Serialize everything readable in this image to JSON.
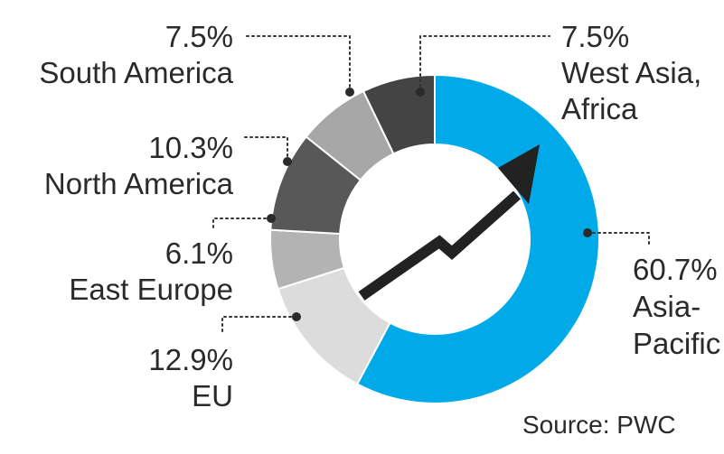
{
  "chart_data": {
    "type": "pie",
    "variant": "donut",
    "categories": [
      "Asia-Pacific",
      "EU",
      "East Europe",
      "North America",
      "South America",
      "West Asia, Africa"
    ],
    "values": [
      60.7,
      12.9,
      6.1,
      10.3,
      7.5,
      7.5
    ],
    "value_labels": [
      "60.7%",
      "12.9%",
      "6.1%",
      "10.3%",
      "7.5%",
      "7.5%"
    ],
    "name_lines": [
      [
        "Asia-",
        "Pacific"
      ],
      [
        "EU"
      ],
      [
        "East Europe"
      ],
      [
        "North America"
      ],
      [
        "South America"
      ],
      [
        "West Asia,",
        "Africa"
      ]
    ],
    "colors": [
      "#00a9e8",
      "#dcdcdc",
      "#b3b3b3",
      "#585858",
      "#a7a7a7",
      "#444444"
    ],
    "start_angle_deg": 0,
    "direction": "clockwise",
    "center_icon": "rising-arrow-icon",
    "source": "Source: PWC"
  }
}
